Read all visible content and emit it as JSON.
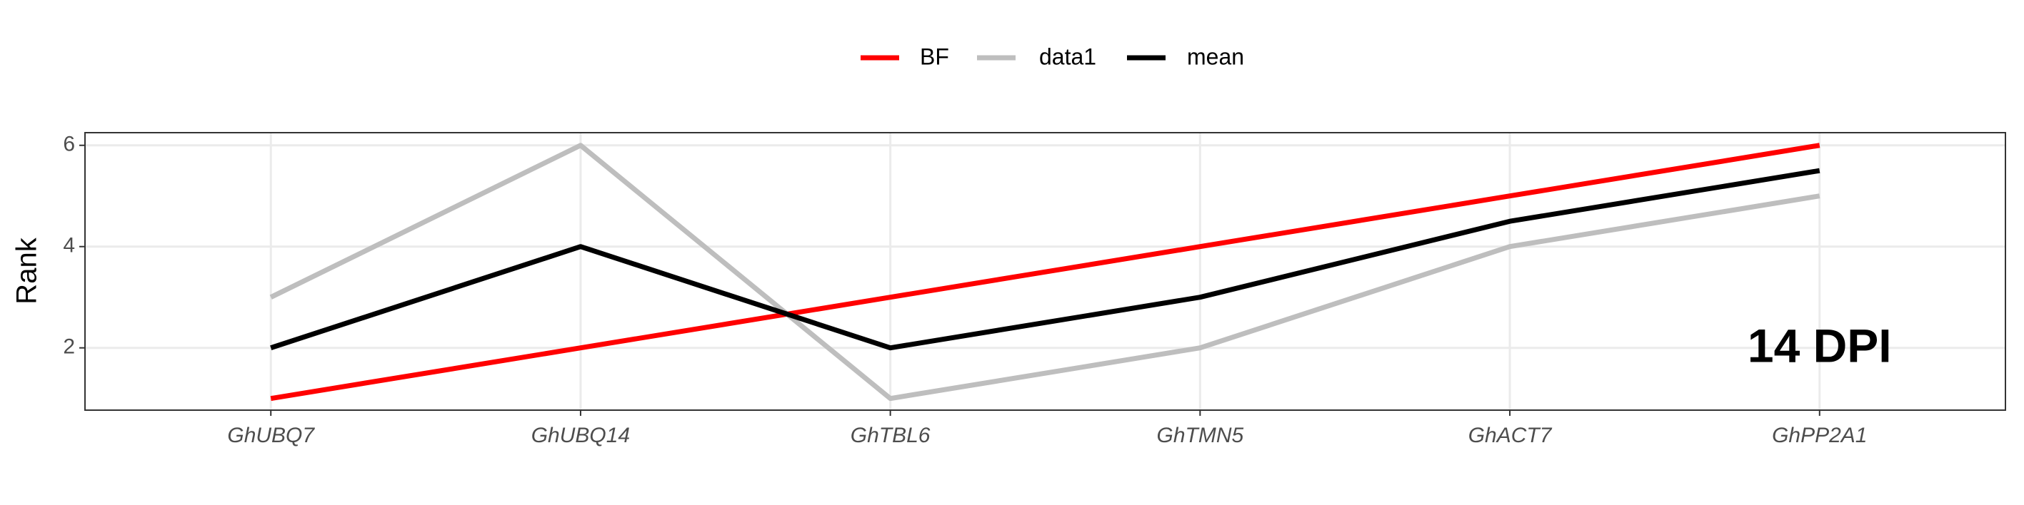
{
  "chart_data": {
    "type": "line",
    "categories": [
      "GhUBQ7",
      "GhUBQ14",
      "GhTBL6",
      "GhTMN5",
      "GhACT7",
      "GhPP2A1"
    ],
    "series": [
      {
        "name": "BF",
        "color": "#ff0000",
        "values": [
          1,
          2,
          3,
          4,
          5,
          6
        ]
      },
      {
        "name": "data1",
        "color": "#bebebe",
        "values": [
          3,
          6,
          1,
          2,
          4,
          5
        ]
      },
      {
        "name": "mean",
        "color": "#000000",
        "values": [
          2,
          4,
          2,
          3,
          4.5,
          5.5
        ]
      }
    ],
    "ylabel": "Rank",
    "annotation": "14 DPI",
    "ylim": [
      0.77,
      6.25
    ],
    "yticks": [
      2,
      4,
      6
    ],
    "grid": true,
    "legend": "top"
  }
}
